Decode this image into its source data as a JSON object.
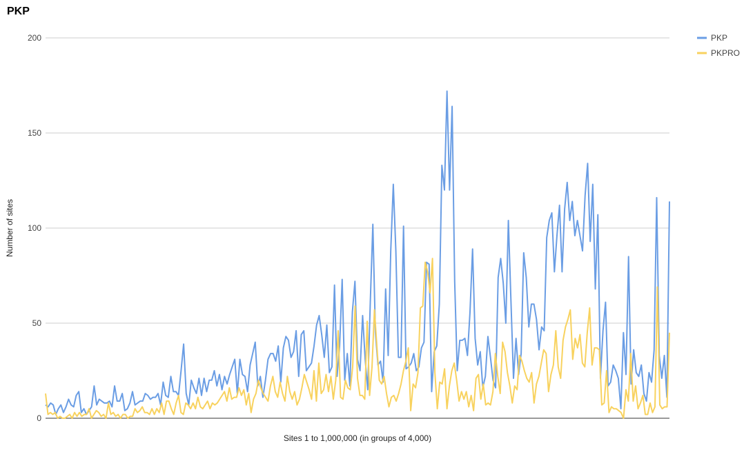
{
  "chart_data": {
    "type": "line",
    "title": "PKP",
    "xlabel": "Sites 1 to 1,000,000 (in groups of 4,000)",
    "ylabel": "Number of sites",
    "ylim": [
      0,
      200
    ],
    "yticks": [
      0,
      50,
      100,
      150,
      200
    ],
    "grid": true,
    "legend_position": "right",
    "series": [
      {
        "name": "PKP",
        "color": "#6a9de4",
        "values": [
          7,
          6,
          8,
          7,
          2,
          5,
          7,
          3,
          6,
          10,
          7,
          6,
          12,
          14,
          3,
          5,
          2,
          4,
          6,
          17,
          7,
          10,
          9,
          8,
          8,
          9,
          6,
          17,
          9,
          9,
          13,
          4,
          5,
          8,
          14,
          7,
          8,
          9,
          9,
          13,
          12,
          10,
          11,
          11,
          13,
          7,
          19,
          12,
          11,
          22,
          14,
          14,
          12,
          25,
          39,
          13,
          7,
          20,
          16,
          13,
          21,
          12,
          21,
          14,
          20,
          20,
          25,
          17,
          23,
          15,
          22,
          18,
          23,
          27,
          31,
          13,
          31,
          23,
          22,
          14,
          28,
          34,
          40,
          17,
          22,
          11,
          20,
          31,
          34,
          34,
          30,
          38,
          19,
          37,
          43,
          41,
          32,
          35,
          46,
          22,
          44,
          46,
          25,
          27,
          29,
          38,
          49,
          54,
          44,
          32,
          49,
          24,
          27,
          70,
          22,
          38,
          73,
          20,
          34,
          17,
          56,
          72,
          31,
          25,
          54,
          31,
          15,
          61,
          102,
          45,
          28,
          30,
          19,
          68,
          33,
          88,
          123,
          88,
          32,
          32,
          101,
          26,
          27,
          29,
          34,
          25,
          27,
          37,
          40,
          82,
          81,
          14,
          35,
          38,
          60,
          133,
          120,
          172,
          120,
          164,
          72,
          25,
          41,
          41,
          42,
          33,
          56,
          89,
          42,
          28,
          35,
          16,
          22,
          43,
          32,
          20,
          16,
          74,
          84,
          71,
          50,
          104,
          62,
          21,
          42,
          23,
          34,
          87,
          74,
          48,
          60,
          60,
          52,
          36,
          48,
          46,
          95,
          104,
          108,
          77,
          96,
          112,
          77,
          110,
          124,
          104,
          114,
          96,
          104,
          96,
          88,
          117,
          134,
          93,
          123,
          68,
          107,
          21,
          46,
          61,
          17,
          19,
          28,
          25,
          21,
          5,
          45,
          23,
          85,
          18,
          36,
          24,
          22,
          28,
          13,
          9,
          24,
          19,
          36,
          116,
          33,
          21,
          33,
          11,
          114
        ]
      },
      {
        "name": "PKPRO",
        "color": "#f8d25e",
        "values": [
          13,
          2,
          3,
          2,
          3,
          0,
          1,
          0,
          0,
          1,
          2,
          0,
          3,
          1,
          3,
          1,
          2,
          2,
          5,
          0,
          2,
          4,
          3,
          1,
          2,
          0,
          8,
          2,
          3,
          1,
          2,
          0,
          2,
          2,
          0,
          1,
          1,
          5,
          3,
          4,
          6,
          3,
          3,
          2,
          5,
          2,
          5,
          3,
          8,
          2,
          9,
          9,
          5,
          2,
          8,
          12,
          3,
          2,
          8,
          7,
          5,
          8,
          5,
          11,
          6,
          5,
          7,
          9,
          5,
          8,
          7,
          8,
          10,
          12,
          14,
          9,
          16,
          10,
          11,
          11,
          16,
          12,
          15,
          7,
          13,
          3,
          10,
          13,
          20,
          16,
          13,
          11,
          9,
          17,
          22,
          14,
          11,
          19,
          13,
          9,
          22,
          14,
          10,
          14,
          7,
          10,
          16,
          23,
          19,
          15,
          10,
          25,
          9,
          29,
          13,
          15,
          23,
          14,
          22,
          10,
          20,
          46,
          11,
          10,
          20,
          16,
          15,
          27,
          59,
          21,
          12,
          12,
          10,
          51,
          12,
          27,
          57,
          38,
          20,
          18,
          22,
          13,
          6,
          11,
          12,
          9,
          13,
          18,
          25,
          30,
          37,
          4,
          18,
          16,
          24,
          58,
          59,
          82,
          77,
          66,
          84,
          24,
          5,
          19,
          18,
          26,
          5,
          17,
          25,
          29,
          20,
          9,
          14,
          10,
          14,
          6,
          12,
          4,
          21,
          23,
          10,
          18,
          7,
          8,
          7,
          14,
          34,
          22,
          13,
          40,
          35,
          24,
          17,
          8,
          17,
          15,
          33,
          30,
          25,
          21,
          19,
          24,
          8,
          18,
          22,
          29,
          36,
          34,
          14,
          23,
          28,
          46,
          27,
          21,
          41,
          48,
          52,
          57,
          31,
          42,
          37,
          44,
          29,
          27,
          45,
          58,
          28,
          37,
          37,
          36,
          7,
          8,
          25,
          3,
          6,
          5,
          5,
          4,
          3,
          0,
          15,
          9,
          34,
          9,
          17,
          5,
          8,
          12,
          2,
          2,
          8,
          3,
          6,
          69,
          7,
          5,
          6,
          6,
          45
        ]
      }
    ]
  }
}
